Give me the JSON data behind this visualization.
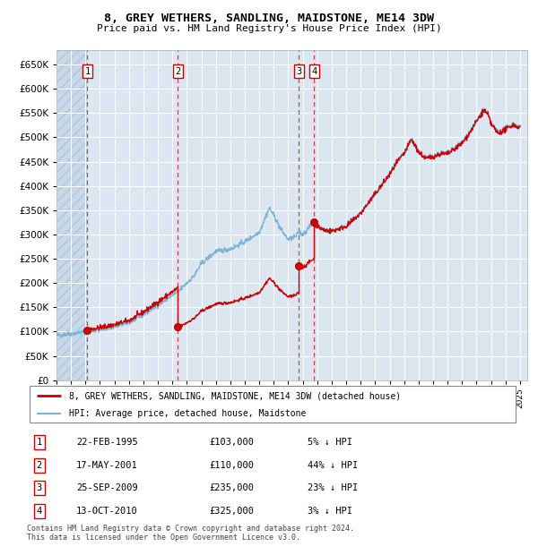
{
  "title": "8, GREY WETHERS, SANDLING, MAIDSTONE, ME14 3DW",
  "subtitle": "Price paid vs. HM Land Registry's House Price Index (HPI)",
  "ylim": [
    0,
    680000
  ],
  "yticks": [
    0,
    50000,
    100000,
    150000,
    200000,
    250000,
    300000,
    350000,
    400000,
    450000,
    500000,
    550000,
    600000,
    650000
  ],
  "xlim_start": 1993.0,
  "xlim_end": 2025.5,
  "bg_color": "#dce6f1",
  "hatch_color": "#c8d8e8",
  "grid_color": "#ffffff",
  "sale_color": "#cc0000",
  "hpi_color": "#7fb3d3",
  "sale_points": [
    {
      "year": 1995.13,
      "price": 103000,
      "label": "1"
    },
    {
      "year": 2001.38,
      "price": 110000,
      "label": "2"
    },
    {
      "year": 2009.73,
      "price": 235000,
      "label": "3"
    },
    {
      "year": 2010.79,
      "price": 325000,
      "label": "4"
    }
  ],
  "vline_x": [
    1995.13,
    2001.38,
    2009.73,
    2010.79
  ],
  "legend_sale_label": "8, GREY WETHERS, SANDLING, MAIDSTONE, ME14 3DW (detached house)",
  "legend_hpi_label": "HPI: Average price, detached house, Maidstone",
  "table_data": [
    [
      "1",
      "22-FEB-1995",
      "£103,000",
      "5% ↓ HPI"
    ],
    [
      "2",
      "17-MAY-2001",
      "£110,000",
      "44% ↓ HPI"
    ],
    [
      "3",
      "25-SEP-2009",
      "£235,000",
      "23% ↓ HPI"
    ],
    [
      "4",
      "13-OCT-2010",
      "£325,000",
      "3% ↓ HPI"
    ]
  ],
  "footer": "Contains HM Land Registry data © Crown copyright and database right 2024.\nThis data is licensed under the Open Government Licence v3.0."
}
